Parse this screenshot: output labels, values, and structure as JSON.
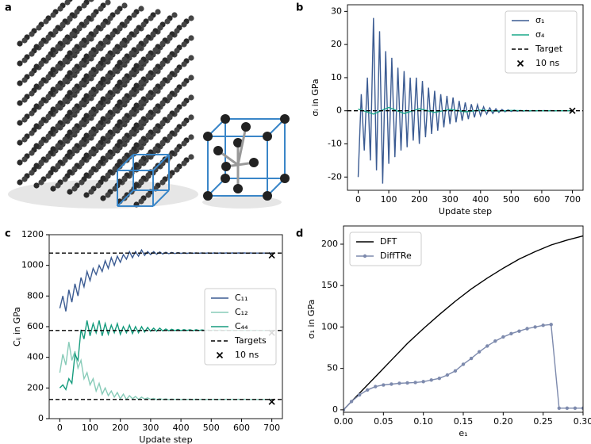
{
  "panel_a": {
    "label": "a"
  },
  "chart_data": [
    {
      "type": "line",
      "label": "b",
      "xlabel": "Update step",
      "ylabel": "σᵢ in GPa",
      "xlim": [
        -35,
        735
      ],
      "xticks": [
        0,
        100,
        200,
        300,
        400,
        500,
        600,
        700
      ],
      "ylim": [
        -24,
        32
      ],
      "yticks": [
        -20,
        -10,
        0,
        10,
        20,
        30
      ],
      "grid": false,
      "legend": "upper right",
      "series": [
        {
          "name": "σ₁",
          "color": "#3b5b92",
          "x": [
            0,
            10,
            20,
            30,
            40,
            50,
            60,
            70,
            80,
            90,
            100,
            110,
            120,
            130,
            140,
            150,
            160,
            170,
            180,
            190,
            200,
            210,
            220,
            230,
            240,
            250,
            260,
            270,
            280,
            290,
            300,
            310,
            320,
            330,
            340,
            350,
            360,
            370,
            380,
            390,
            400,
            410,
            420,
            430,
            440,
            450,
            460,
            470,
            480,
            490,
            500,
            510,
            520,
            530,
            540,
            550,
            560,
            570,
            580,
            590,
            600,
            610,
            620,
            630,
            640,
            650,
            660,
            670,
            680,
            690,
            700
          ],
          "values": [
            -20,
            5,
            -12,
            10,
            -15,
            28,
            -18,
            24,
            -22,
            18,
            -16,
            16,
            -14,
            13,
            -12,
            12,
            -11,
            10,
            -9,
            10,
            -10,
            9,
            -8,
            7,
            -7,
            6,
            -6,
            5,
            -5,
            4.5,
            -4,
            4,
            -3.5,
            3,
            -3,
            2.5,
            -2.5,
            2,
            -2,
            1.8,
            -1.5,
            1.2,
            -1,
            0.9,
            -0.8,
            0.6,
            -0.5,
            0.4,
            -0.3,
            0.3,
            -0.2,
            0.2,
            -0.15,
            0.1,
            -0.1,
            0.1,
            -0.1,
            0.05,
            -0.05,
            0.05,
            0,
            0.05,
            -0.05,
            0.05,
            -0.05,
            0,
            0,
            0,
            0,
            0,
            0
          ]
        },
        {
          "name": "σ₄",
          "color": "#1aa88a",
          "x": [
            0,
            50,
            100,
            150,
            200,
            250,
            300,
            350,
            400,
            450,
            500,
            550,
            600,
            650,
            700
          ],
          "values": [
            0.5,
            -1,
            1,
            -0.8,
            0.6,
            -0.5,
            0.4,
            -0.3,
            0.2,
            -0.1,
            0.1,
            0,
            0,
            0,
            0
          ]
        }
      ],
      "reference": {
        "name": "Target",
        "values": [
          0
        ]
      },
      "markers": {
        "name": "10 ns",
        "x": [
          700
        ],
        "values": [
          0
        ]
      }
    },
    {
      "type": "line",
      "label": "c",
      "xlabel": "Update step",
      "ylabel": "Cᵢⱼ in GPa",
      "xlim": [
        -35,
        735
      ],
      "xticks": [
        0,
        100,
        200,
        300,
        400,
        500,
        600,
        700
      ],
      "ylim": [
        0,
        1200
      ],
      "yticks": [
        0,
        200,
        400,
        600,
        800,
        1000,
        1200
      ],
      "grid": false,
      "legend": "center right",
      "series": [
        {
          "name": "C₁₁",
          "color": "#3b5b92",
          "x": [
            0,
            10,
            20,
            30,
            40,
            50,
            60,
            70,
            80,
            90,
            100,
            110,
            120,
            130,
            140,
            150,
            160,
            170,
            180,
            190,
            200,
            210,
            220,
            230,
            240,
            250,
            260,
            270,
            280,
            290,
            300,
            310,
            320,
            330,
            340,
            350,
            360,
            370,
            380,
            390,
            400,
            410,
            420,
            430,
            440,
            450,
            460,
            470,
            480,
            490,
            500,
            510,
            520,
            530,
            540,
            550,
            560,
            570,
            580,
            590,
            600,
            610,
            620,
            630,
            640,
            650,
            660,
            670,
            680,
            690,
            700
          ],
          "values": [
            720,
            800,
            700,
            840,
            760,
            880,
            800,
            920,
            860,
            960,
            900,
            980,
            940,
            1000,
            960,
            1030,
            980,
            1050,
            1000,
            1060,
            1020,
            1070,
            1040,
            1090,
            1050,
            1090,
            1060,
            1100,
            1065,
            1090,
            1070,
            1090,
            1072,
            1088,
            1074,
            1085,
            1076,
            1084,
            1077,
            1083,
            1078,
            1082,
            1078,
            1082,
            1079,
            1081,
            1079,
            1081,
            1079,
            1081,
            1079,
            1081,
            1079,
            1081,
            1079,
            1081,
            1079,
            1081,
            1079,
            1081,
            1080,
            1081,
            1079,
            1081,
            1079,
            1080,
            1080,
            1080,
            1080,
            1080,
            1080
          ]
        },
        {
          "name": "C₁₂",
          "color": "#87cbb8",
          "x": [
            0,
            10,
            20,
            30,
            40,
            50,
            60,
            70,
            80,
            90,
            100,
            110,
            120,
            130,
            140,
            150,
            160,
            170,
            180,
            190,
            200,
            210,
            220,
            230,
            240,
            250,
            260,
            270,
            280,
            290,
            300,
            310,
            320,
            330,
            340,
            350,
            360,
            370,
            380,
            390,
            400,
            410,
            420,
            430,
            440,
            450,
            460,
            470,
            480,
            490,
            500,
            510,
            520,
            530,
            540,
            550,
            560,
            570,
            580,
            590,
            600,
            610,
            620,
            630,
            640,
            650,
            660,
            670,
            680,
            690,
            700
          ],
          "values": [
            300,
            420,
            350,
            500,
            380,
            440,
            330,
            380,
            260,
            300,
            220,
            260,
            180,
            230,
            160,
            200,
            150,
            180,
            140,
            170,
            130,
            160,
            125,
            150,
            130,
            145,
            125,
            140,
            128,
            135,
            126,
            132,
            124,
            130,
            125,
            129,
            124,
            128,
            125,
            128,
            124,
            127,
            125,
            127,
            124,
            127,
            125,
            126,
            124,
            126,
            125,
            126,
            124,
            126,
            125,
            126,
            125,
            126,
            125,
            126,
            125,
            126,
            125,
            125,
            125,
            125,
            125,
            125,
            125,
            125,
            125
          ]
        },
        {
          "name": "C₄₄",
          "color": "#169c7e",
          "x": [
            0,
            10,
            20,
            30,
            40,
            50,
            60,
            70,
            80,
            90,
            100,
            110,
            120,
            130,
            140,
            150,
            160,
            170,
            180,
            190,
            200,
            210,
            220,
            230,
            240,
            250,
            260,
            270,
            280,
            290,
            300,
            310,
            320,
            330,
            340,
            350,
            360,
            370,
            380,
            390,
            400,
            410,
            420,
            430,
            440,
            450,
            460,
            470,
            480,
            490,
            500,
            510,
            520,
            530,
            540,
            550,
            560,
            570,
            580,
            590,
            600,
            610,
            620,
            630,
            640,
            650,
            660,
            670,
            680,
            690,
            700
          ],
          "values": [
            200,
            220,
            190,
            260,
            230,
            420,
            380,
            580,
            520,
            640,
            540,
            620,
            560,
            640,
            540,
            620,
            550,
            610,
            560,
            620,
            550,
            600,
            560,
            610,
            555,
            600,
            560,
            600,
            565,
            595,
            570,
            590,
            570,
            590,
            572,
            585,
            573,
            583,
            574,
            582,
            574,
            581,
            575,
            580,
            574,
            580,
            575,
            579,
            575,
            578,
            575,
            578,
            575,
            578,
            575,
            577,
            575,
            577,
            575,
            577,
            575,
            576,
            575,
            576,
            575,
            576,
            575,
            575,
            575,
            575,
            575
          ]
        }
      ],
      "reference": {
        "name": "Targets",
        "values": [
          1080,
          575,
          125
        ]
      },
      "markers": {
        "name": "10 ns",
        "x": [
          700,
          700,
          700
        ],
        "values": [
          1065,
          560,
          110
        ]
      }
    },
    {
      "type": "line",
      "label": "d",
      "xlabel": "e₁",
      "ylabel": "σ₁ in GPa",
      "xlim": [
        0,
        0.3
      ],
      "xticks": [
        {
          "value": 0,
          "label": "0.00"
        },
        {
          "value": 0.05,
          "label": "0.05"
        },
        {
          "value": 0.1,
          "label": "0.10"
        },
        {
          "value": 0.15,
          "label": "0.15"
        },
        {
          "value": 0.2,
          "label": "0.20"
        },
        {
          "value": 0.25,
          "label": "0.25"
        },
        {
          "value": 0.3,
          "label": "0.30"
        }
      ],
      "ylim": [
        -3,
        222
      ],
      "yticks": [
        0,
        50,
        100,
        150,
        200
      ],
      "grid": false,
      "legend": "upper left",
      "series": [
        {
          "name": "DFT",
          "color": "#000000",
          "x": [
            0,
            0.02,
            0.04,
            0.06,
            0.08,
            0.1,
            0.12,
            0.14,
            0.16,
            0.18,
            0.2,
            0.22,
            0.24,
            0.26,
            0.28,
            0.3
          ],
          "values": [
            0,
            20,
            40,
            60,
            80,
            98,
            115,
            131,
            146,
            159,
            171,
            182,
            191,
            199,
            205,
            210
          ]
        },
        {
          "name": "DiffTRe",
          "color": "#7d8aad",
          "marker": "o",
          "x": [
            0,
            0.01,
            0.02,
            0.03,
            0.04,
            0.05,
            0.06,
            0.07,
            0.08,
            0.09,
            0.1,
            0.11,
            0.12,
            0.13,
            0.14,
            0.15,
            0.16,
            0.17,
            0.18,
            0.19,
            0.2,
            0.21,
            0.22,
            0.23,
            0.24,
            0.25,
            0.26,
            0.27,
            0.28,
            0.29,
            0.3
          ],
          "values": [
            0,
            10,
            18,
            24,
            28,
            30,
            31,
            32,
            32.5,
            33,
            34,
            36,
            38,
            42,
            47,
            55,
            62,
            70,
            77,
            83,
            88,
            92,
            95,
            98,
            100,
            102,
            103,
            2,
            2,
            2,
            2
          ]
        }
      ]
    }
  ]
}
